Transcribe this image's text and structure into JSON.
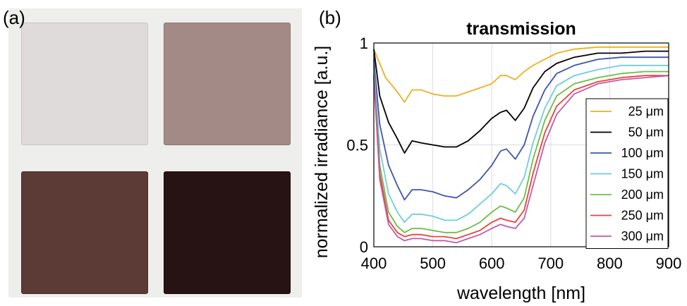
{
  "panels": {
    "a_label": "(a)",
    "b_label": "(b)"
  },
  "samples": [
    {
      "color": "#dfdbda",
      "edge": "#c9c4c3"
    },
    {
      "color": "#a48a86",
      "edge": "#8d7470"
    },
    {
      "color": "#5c3a35",
      "edge": "#4a2d29"
    },
    {
      "color": "#271314",
      "edge": "#1a0c0d"
    }
  ],
  "chart_data": {
    "type": "line",
    "title": "transmission",
    "xlabel": "wavelength [nm]",
    "ylabel": "normalized irradiance [a.u.]",
    "xlim": [
      400,
      900
    ],
    "ylim": [
      0,
      1
    ],
    "xticks": [
      400,
      500,
      600,
      700,
      800,
      900
    ],
    "yticks": [
      0,
      0.5,
      1
    ],
    "ytick_labels": [
      "0",
      "0.5",
      "1"
    ],
    "grid": true,
    "legend_position": "right",
    "series": [
      {
        "name": "25 μm",
        "color": "#EDB120",
        "x": [
          400,
          420,
          440,
          452,
          465,
          480,
          500,
          520,
          540,
          560,
          580,
          600,
          615,
          625,
          640,
          655,
          670,
          690,
          710,
          740,
          780,
          820,
          860,
          900
        ],
        "y": [
          0.97,
          0.83,
          0.76,
          0.71,
          0.77,
          0.77,
          0.75,
          0.74,
          0.74,
          0.76,
          0.78,
          0.8,
          0.84,
          0.84,
          0.82,
          0.86,
          0.89,
          0.92,
          0.95,
          0.97,
          0.98,
          0.98,
          0.98,
          0.98
        ]
      },
      {
        "name": "50 μm",
        "color": "#000000",
        "x": [
          400,
          410,
          425,
          440,
          452,
          465,
          480,
          500,
          520,
          540,
          560,
          580,
          600,
          615,
          625,
          640,
          655,
          670,
          690,
          710,
          740,
          780,
          820,
          860,
          900
        ],
        "y": [
          0.97,
          0.74,
          0.61,
          0.53,
          0.46,
          0.52,
          0.51,
          0.5,
          0.49,
          0.49,
          0.52,
          0.57,
          0.63,
          0.66,
          0.67,
          0.62,
          0.68,
          0.78,
          0.86,
          0.9,
          0.93,
          0.95,
          0.95,
          0.96,
          0.96
        ]
      },
      {
        "name": "100 μm",
        "color": "#3E55A8",
        "x": [
          400,
          410,
          425,
          440,
          452,
          465,
          480,
          500,
          520,
          540,
          560,
          580,
          600,
          615,
          625,
          640,
          655,
          670,
          690,
          710,
          740,
          780,
          820,
          860,
          900
        ],
        "y": [
          0.92,
          0.6,
          0.4,
          0.3,
          0.23,
          0.28,
          0.28,
          0.27,
          0.25,
          0.24,
          0.28,
          0.33,
          0.4,
          0.47,
          0.48,
          0.43,
          0.5,
          0.64,
          0.77,
          0.85,
          0.89,
          0.92,
          0.93,
          0.93,
          0.93
        ]
      },
      {
        "name": "150 μm",
        "color": "#6FCDDC",
        "x": [
          400,
          410,
          425,
          440,
          452,
          465,
          480,
          500,
          520,
          540,
          560,
          580,
          600,
          615,
          625,
          640,
          655,
          670,
          690,
          710,
          740,
          780,
          820,
          860,
          900
        ],
        "y": [
          0.88,
          0.48,
          0.26,
          0.17,
          0.12,
          0.16,
          0.16,
          0.15,
          0.13,
          0.13,
          0.16,
          0.21,
          0.26,
          0.31,
          0.3,
          0.26,
          0.34,
          0.51,
          0.68,
          0.79,
          0.84,
          0.87,
          0.89,
          0.89,
          0.89
        ]
      },
      {
        "name": "200 μm",
        "color": "#6BBE45",
        "x": [
          400,
          410,
          425,
          440,
          452,
          465,
          480,
          500,
          520,
          540,
          560,
          580,
          600,
          615,
          625,
          640,
          655,
          670,
          690,
          710,
          740,
          780,
          820,
          860,
          900
        ],
        "y": [
          0.85,
          0.4,
          0.17,
          0.1,
          0.07,
          0.09,
          0.09,
          0.08,
          0.07,
          0.07,
          0.09,
          0.12,
          0.17,
          0.2,
          0.19,
          0.17,
          0.24,
          0.43,
          0.62,
          0.74,
          0.8,
          0.83,
          0.85,
          0.86,
          0.86
        ]
      },
      {
        "name": "250 μm",
        "color": "#E8433A",
        "x": [
          400,
          410,
          425,
          440,
          452,
          465,
          480,
          500,
          520,
          540,
          560,
          580,
          600,
          615,
          625,
          640,
          655,
          670,
          690,
          710,
          740,
          780,
          820,
          860,
          900
        ],
        "y": [
          0.84,
          0.36,
          0.13,
          0.07,
          0.05,
          0.06,
          0.06,
          0.05,
          0.05,
          0.04,
          0.06,
          0.08,
          0.12,
          0.14,
          0.13,
          0.12,
          0.18,
          0.36,
          0.56,
          0.69,
          0.77,
          0.81,
          0.83,
          0.84,
          0.84
        ]
      },
      {
        "name": "300 μm",
        "color": "#C25AAB",
        "x": [
          400,
          410,
          425,
          440,
          452,
          465,
          480,
          500,
          520,
          540,
          560,
          580,
          600,
          615,
          625,
          640,
          655,
          670,
          690,
          710,
          740,
          780,
          820,
          860,
          900
        ],
        "y": [
          0.83,
          0.33,
          0.11,
          0.05,
          0.03,
          0.04,
          0.04,
          0.03,
          0.03,
          0.02,
          0.04,
          0.06,
          0.09,
          0.11,
          0.1,
          0.09,
          0.14,
          0.3,
          0.51,
          0.65,
          0.75,
          0.8,
          0.82,
          0.83,
          0.84
        ]
      }
    ]
  }
}
